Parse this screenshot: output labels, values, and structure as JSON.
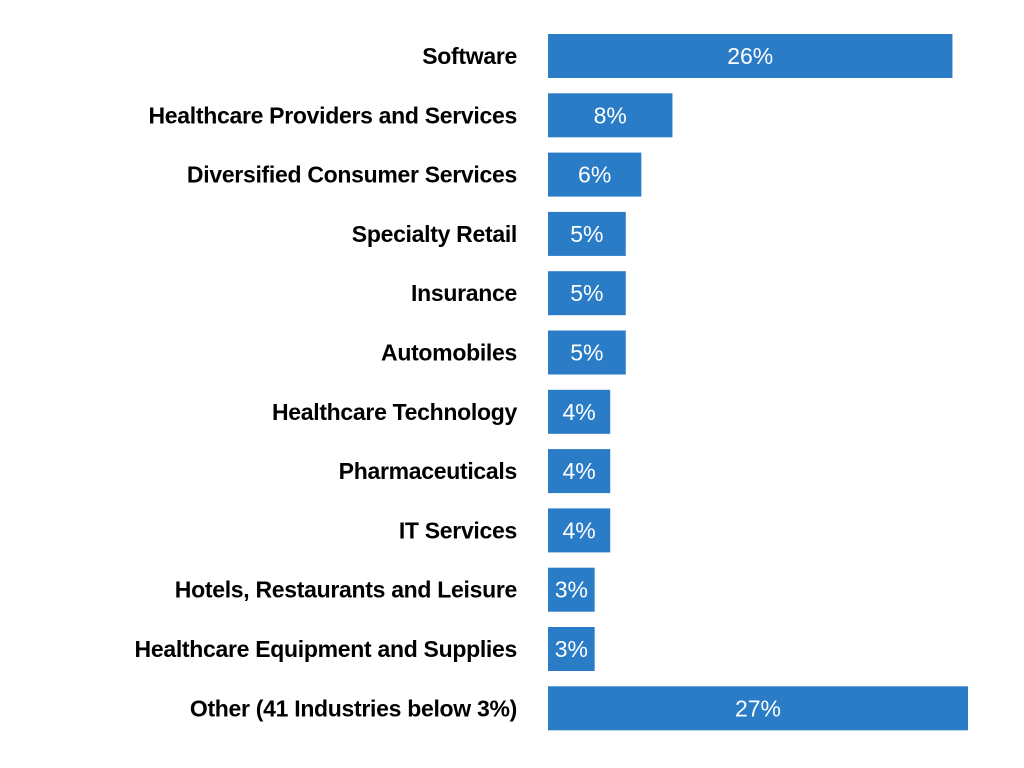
{
  "chart_data": {
    "type": "bar",
    "orientation": "horizontal",
    "title": "",
    "xlabel": "",
    "ylabel": "",
    "categories": [
      "Software",
      "Healthcare Providers and Services",
      "Diversified Consumer Services",
      "Specialty Retail",
      "Insurance",
      "Automobiles",
      "Healthcare Technology",
      "Pharmaceuticals",
      "IT Services",
      "Hotels, Restaurants and Leisure",
      "Healthcare Equipment and Supplies",
      "Other (41 Industries below 3%)"
    ],
    "values": [
      26,
      8,
      6,
      5,
      5,
      5,
      4,
      4,
      4,
      3,
      3,
      27
    ],
    "value_labels": [
      "26%",
      "8%",
      "6%",
      "5%",
      "5%",
      "5%",
      "4%",
      "4%",
      "4%",
      "3%",
      "3%",
      "27%"
    ],
    "xlim": [
      0,
      27
    ],
    "grid": false,
    "legend": "none",
    "colors": {
      "bar": "#2A7CC7",
      "category_text": "#000000",
      "value_text": "#ffffff",
      "background": "#ffffff"
    }
  }
}
